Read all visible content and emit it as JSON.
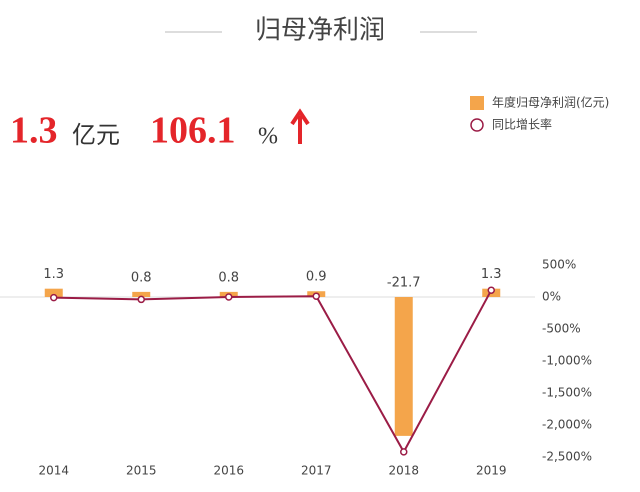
{
  "chart_data": {
    "type": "bar",
    "title": "归母净利润",
    "headline": {
      "value": "1.3",
      "unit": "亿元",
      "rate": "106.1",
      "rate_unit": "%"
    },
    "categories": [
      "2014",
      "2015",
      "2016",
      "2017",
      "2018",
      "2019"
    ],
    "series": [
      {
        "name": "年度归母净利润(亿元)",
        "type": "bar",
        "color": "#f4a54b",
        "values": [
          1.3,
          0.8,
          0.8,
          0.9,
          -21.7,
          1.3
        ]
      },
      {
        "name": "同比增长率",
        "type": "line",
        "axis": "y2",
        "color": "#9b1c46",
        "values": [
          -10,
          -38,
          0,
          12.5,
          -2420,
          106.1
        ]
      }
    ],
    "ylim": [
      -25,
      5
    ],
    "y2lim": [
      -2500,
      500
    ],
    "y2ticks": [
      {
        "value": 500,
        "label": "500%"
      },
      {
        "value": 0,
        "label": "0%"
      },
      {
        "value": -500,
        "label": "-500%"
      },
      {
        "value": -1000,
        "label": "-1,000%"
      },
      {
        "value": -1500,
        "label": "-1,500%"
      },
      {
        "value": -2000,
        "label": "-2,000%"
      },
      {
        "value": -2500,
        "label": "-2,500%"
      }
    ],
    "legend": "top-right",
    "grid": false
  }
}
